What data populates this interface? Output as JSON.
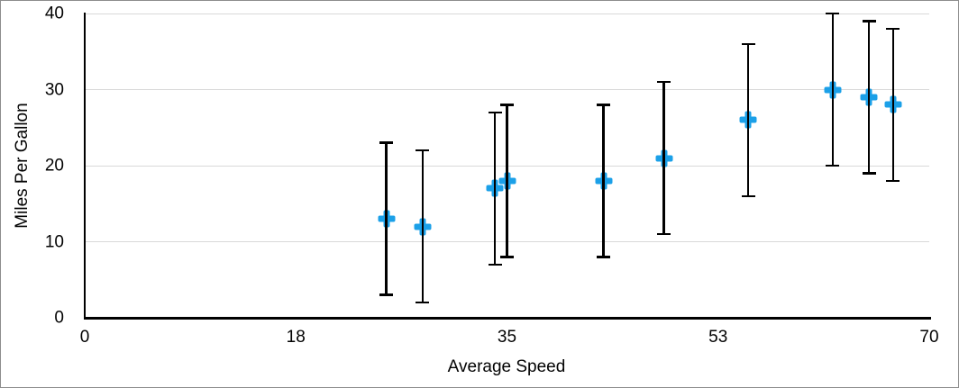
{
  "chart_data": {
    "type": "scatter",
    "title": "",
    "xlabel": "Average Speed",
    "ylabel": "Miles Per Gallon",
    "points": [
      {
        "x": 25,
        "y": 13
      },
      {
        "x": 28,
        "y": 12
      },
      {
        "x": 34,
        "y": 17
      },
      {
        "x": 35,
        "y": 18
      },
      {
        "x": 43,
        "y": 18
      },
      {
        "x": 48,
        "y": 21
      },
      {
        "x": 55,
        "y": 26
      },
      {
        "x": 62,
        "y": 30
      },
      {
        "x": 65,
        "y": 29
      },
      {
        "x": 67,
        "y": 28
      }
    ],
    "error_y": 10,
    "xlim": [
      0,
      70
    ],
    "ylim": [
      0,
      40
    ],
    "x_ticks": [
      {
        "value": 0,
        "label": "0"
      },
      {
        "value": 17.5,
        "label": "18"
      },
      {
        "value": 35,
        "label": "35"
      },
      {
        "value": 52.5,
        "label": "53"
      },
      {
        "value": 70,
        "label": "70"
      }
    ],
    "y_ticks": [
      {
        "value": 0,
        "label": "0"
      },
      {
        "value": 10,
        "label": "10"
      },
      {
        "value": 20,
        "label": "20"
      },
      {
        "value": 30,
        "label": "30"
      },
      {
        "value": 40,
        "label": "40"
      }
    ],
    "grid": true,
    "legend": false,
    "marker_shape": "plus",
    "marker_color": "#1BA0E8",
    "error_bar_color": "#000000",
    "gridline_color": "#d9d9d9",
    "axis_color": "#000000",
    "frame_border_color": "#8d8d8d"
  }
}
